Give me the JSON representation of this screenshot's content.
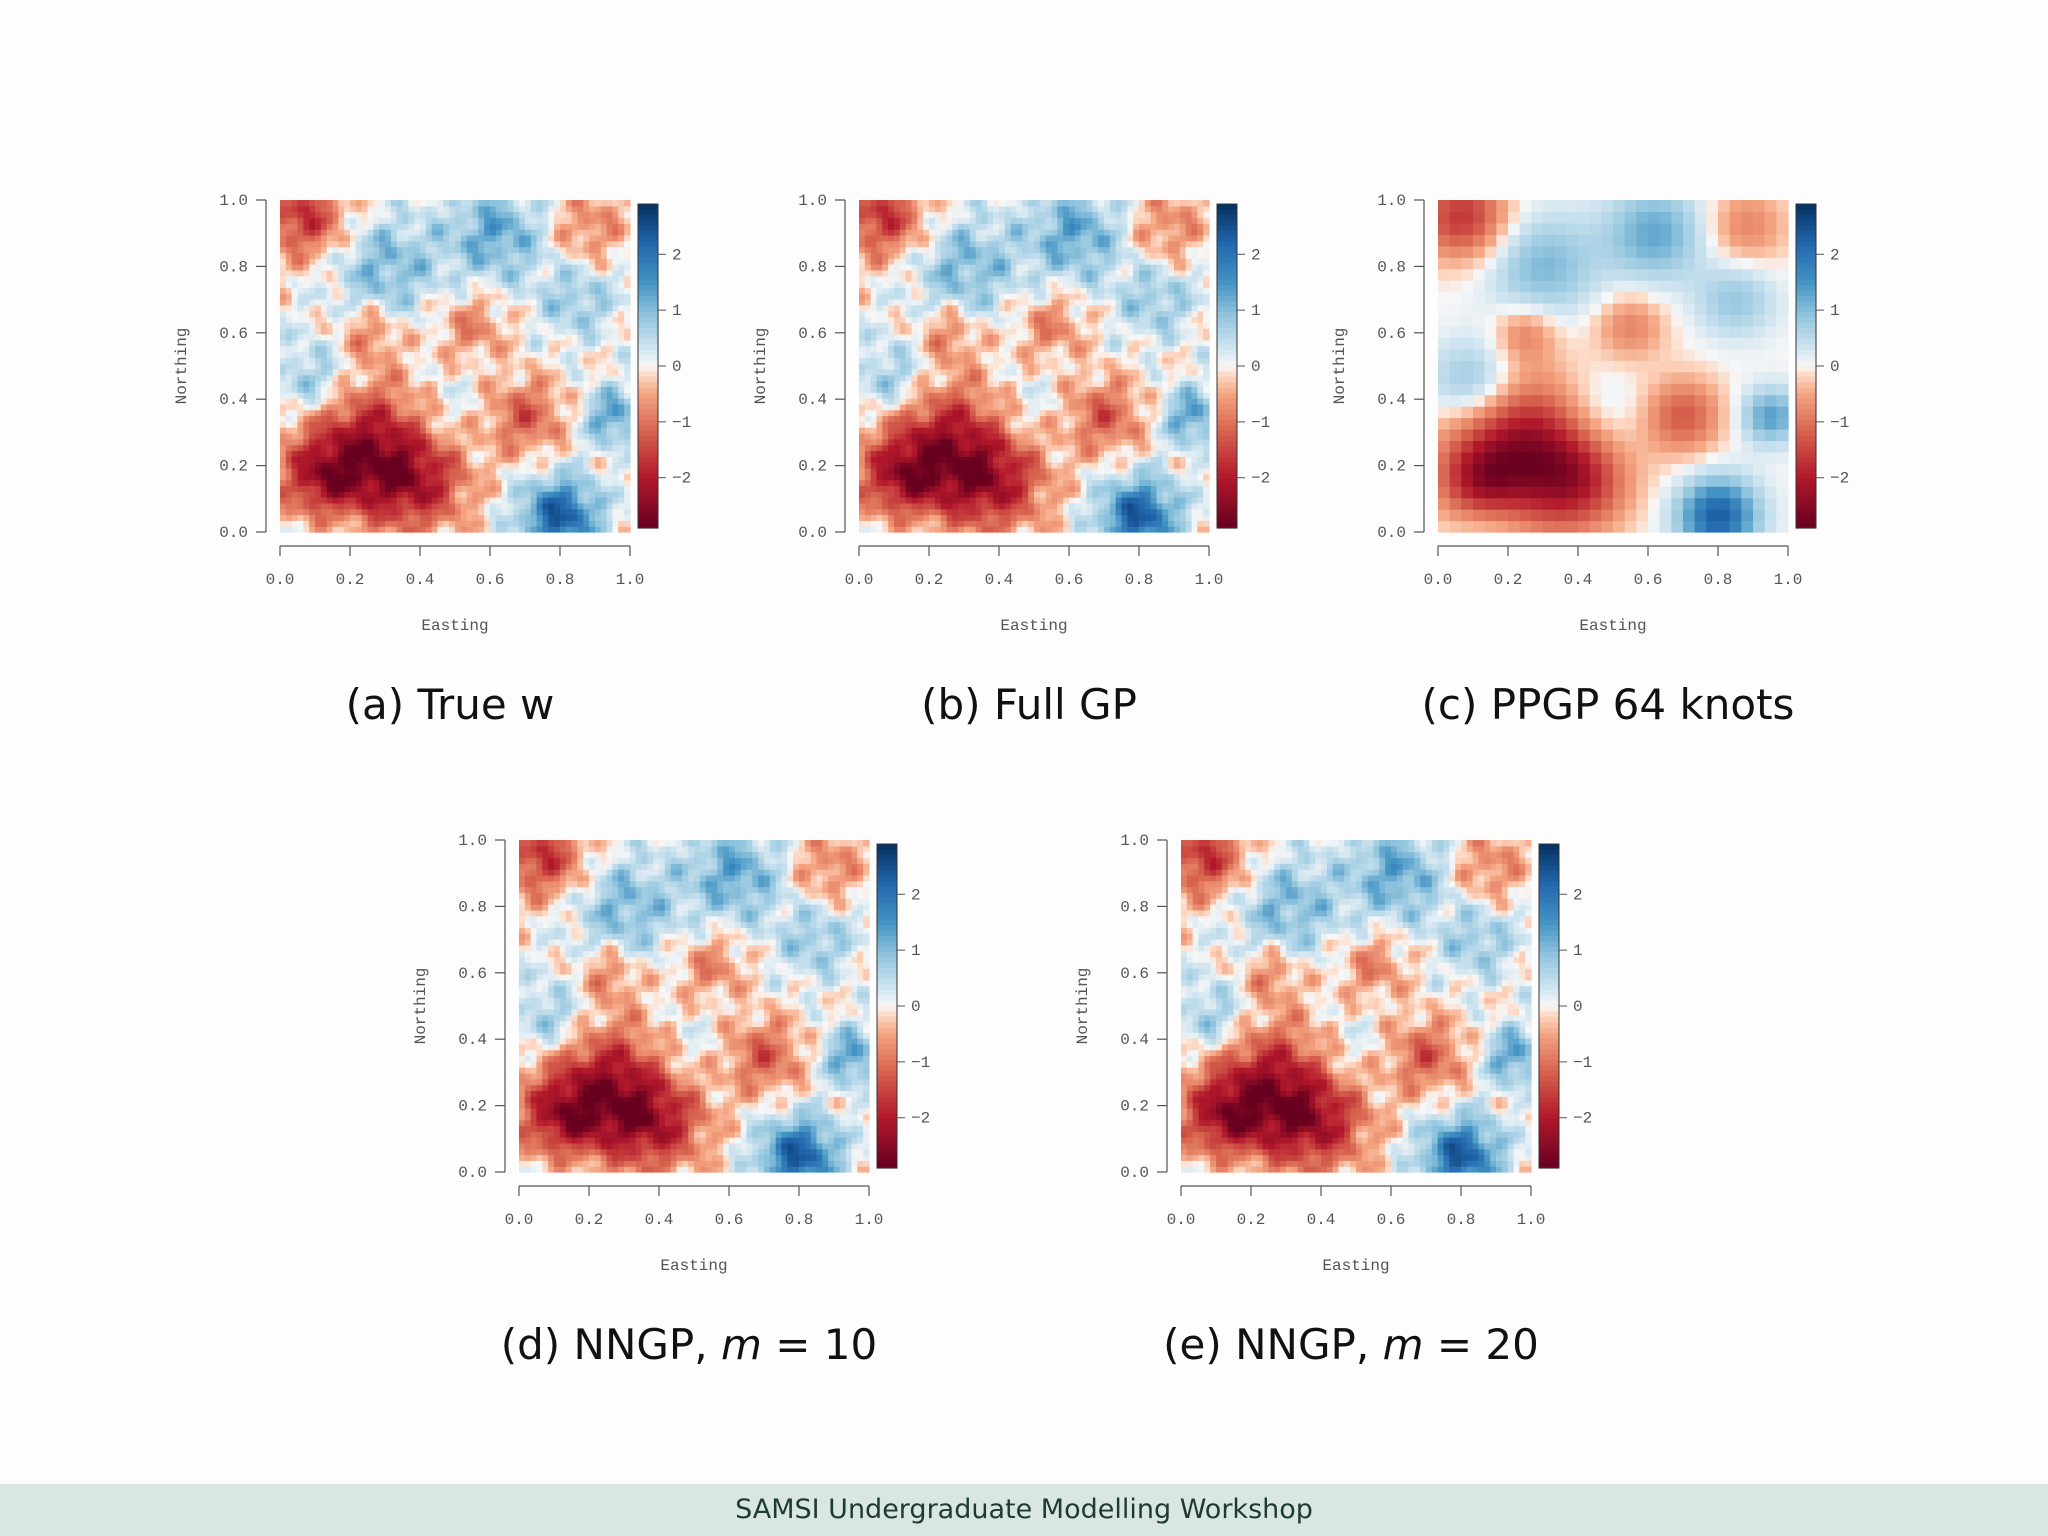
{
  "slide": {
    "footer": "SAMSI Undergraduate Modelling Workshop"
  },
  "chart_data": [
    {
      "type": "heatmap",
      "panel": "a",
      "caption_prefix": "(a)",
      "caption_text": "True w",
      "xlabel": "Easting",
      "ylabel": "Northing",
      "xlim": [
        0,
        1
      ],
      "ylim": [
        0,
        1
      ],
      "xticks": [
        "0.0",
        "0.2",
        "0.4",
        "0.6",
        "0.8",
        "1.0"
      ],
      "yticks": [
        "0.0",
        "0.2",
        "0.4",
        "0.6",
        "0.8",
        "1.0"
      ],
      "colorbar_ticks": [
        "2",
        "1",
        "0",
        "−1",
        "−2"
      ],
      "color_range": [
        -2.9,
        2.9
      ],
      "smoothness": "fine"
    },
    {
      "type": "heatmap",
      "panel": "b",
      "caption_prefix": "(b)",
      "caption_text": "Full GP",
      "xlabel": "Easting",
      "ylabel": "Northing",
      "xlim": [
        0,
        1
      ],
      "ylim": [
        0,
        1
      ],
      "xticks": [
        "0.0",
        "0.2",
        "0.4",
        "0.6",
        "0.8",
        "1.0"
      ],
      "yticks": [
        "0.0",
        "0.2",
        "0.4",
        "0.6",
        "0.8",
        "1.0"
      ],
      "colorbar_ticks": [
        "2",
        "1",
        "0",
        "−1",
        "−2"
      ],
      "color_range": [
        -2.9,
        2.9
      ],
      "smoothness": "fine"
    },
    {
      "type": "heatmap",
      "panel": "c",
      "caption_prefix": "(c)",
      "caption_text": "PPGP 64 knots",
      "xlabel": "Easting",
      "ylabel": "Northing",
      "xlim": [
        0,
        1
      ],
      "ylim": [
        0,
        1
      ],
      "xticks": [
        "0.0",
        "0.2",
        "0.4",
        "0.6",
        "0.8",
        "1.0"
      ],
      "yticks": [
        "0.0",
        "0.2",
        "0.4",
        "0.6",
        "0.8",
        "1.0"
      ],
      "colorbar_ticks": [
        "2",
        "1",
        "0",
        "−1",
        "−2"
      ],
      "color_range": [
        -2.9,
        2.9
      ],
      "smoothness": "coarse"
    },
    {
      "type": "heatmap",
      "panel": "d",
      "caption_prefix": "(d)",
      "caption_text": "NNGP,",
      "caption_var": "m",
      "caption_eq": "= 10",
      "xlabel": "Easting",
      "ylabel": "Northing",
      "xlim": [
        0,
        1
      ],
      "ylim": [
        0,
        1
      ],
      "xticks": [
        "0.0",
        "0.2",
        "0.4",
        "0.6",
        "0.8",
        "1.0"
      ],
      "yticks": [
        "0.0",
        "0.2",
        "0.4",
        "0.6",
        "0.8",
        "1.0"
      ],
      "colorbar_ticks": [
        "2",
        "1",
        "0",
        "−1",
        "−2"
      ],
      "color_range": [
        -2.9,
        2.9
      ],
      "smoothness": "fine"
    },
    {
      "type": "heatmap",
      "panel": "e",
      "caption_prefix": "(e)",
      "caption_text": "NNGP,",
      "caption_var": "m",
      "caption_eq": "= 20",
      "xlabel": "Easting",
      "ylabel": "Northing",
      "xlim": [
        0,
        1
      ],
      "ylim": [
        0,
        1
      ],
      "xticks": [
        "0.0",
        "0.2",
        "0.4",
        "0.6",
        "0.8",
        "1.0"
      ],
      "yticks": [
        "0.0",
        "0.2",
        "0.4",
        "0.6",
        "0.8",
        "1.0"
      ],
      "colorbar_ticks": [
        "2",
        "1",
        "0",
        "−1",
        "−2"
      ],
      "color_range": [
        -2.9,
        2.9
      ],
      "smoothness": "fine"
    }
  ]
}
